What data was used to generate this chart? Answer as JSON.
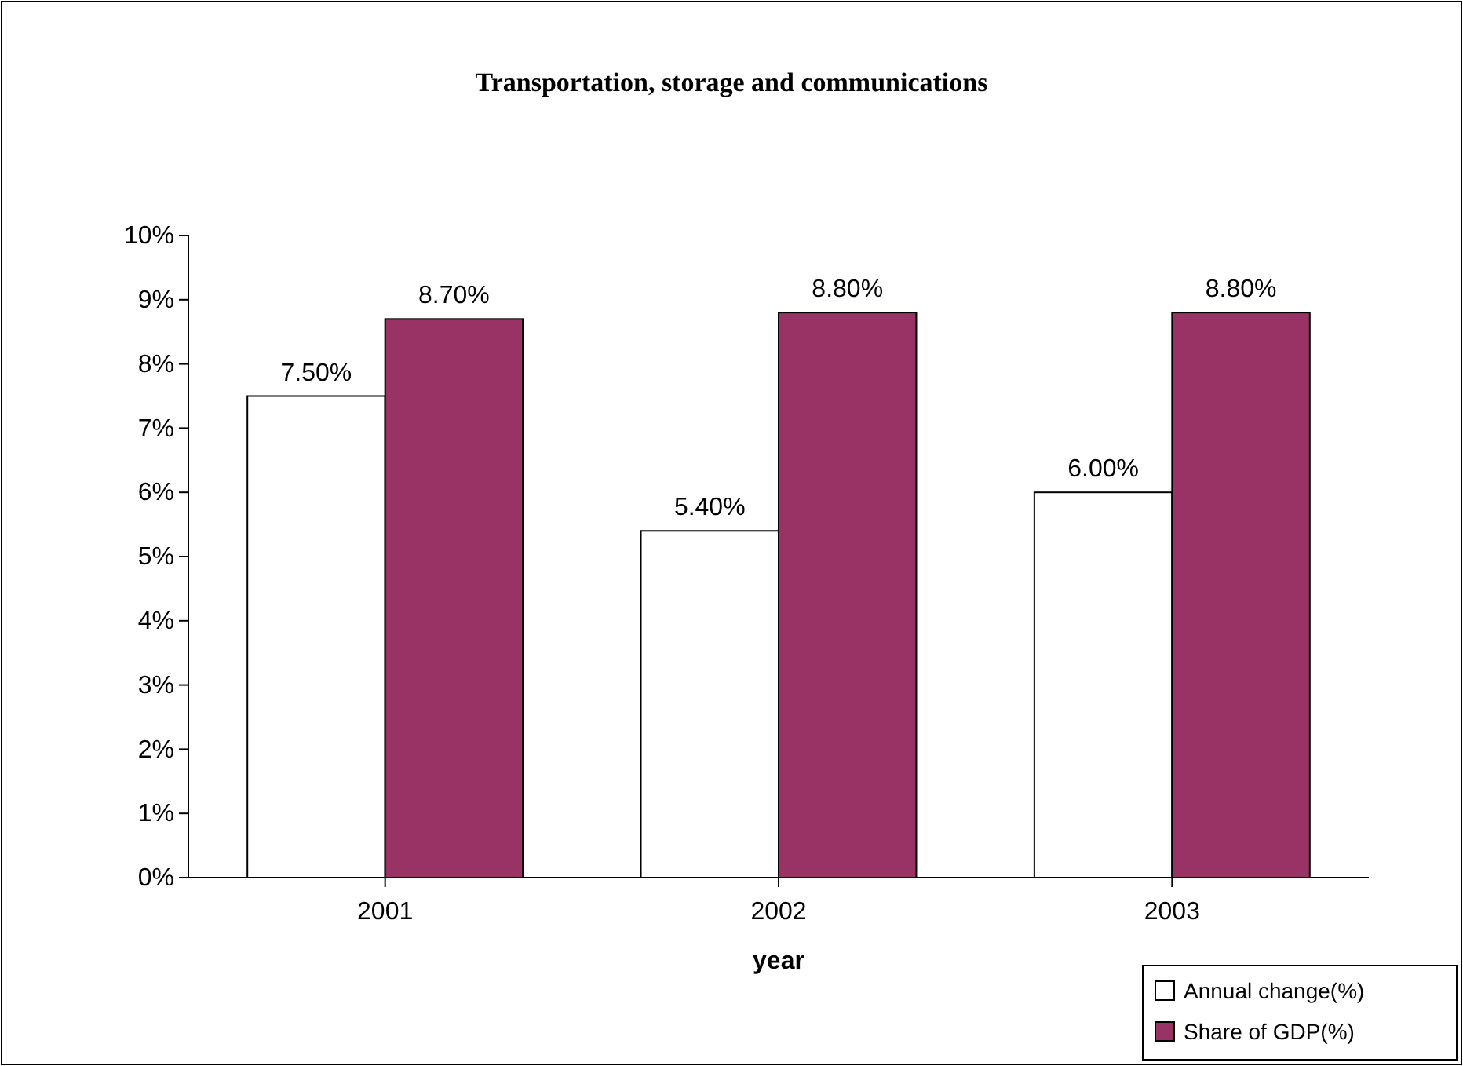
{
  "chart_data": {
    "type": "bar",
    "title": "Transportation, storage and communications",
    "xlabel": "year",
    "categories": [
      "2001",
      "2002",
      "2003"
    ],
    "series": [
      {
        "name": "Annual change(%)",
        "color": "#ffffff",
        "values": [
          7.5,
          5.4,
          6.0
        ],
        "value_labels": [
          "7.50%",
          "5.40%",
          "6.00%"
        ]
      },
      {
        "name": "Share of GDP(%)",
        "color": "#993366",
        "values": [
          8.7,
          8.8,
          8.8
        ],
        "value_labels": [
          "8.70%",
          "8.80%",
          "8.80%"
        ]
      }
    ],
    "ylim": [
      0,
      10
    ],
    "yticks": [
      {
        "value": 0,
        "label": "0%"
      },
      {
        "value": 1,
        "label": "1%"
      },
      {
        "value": 2,
        "label": "2%"
      },
      {
        "value": 3,
        "label": "3%"
      },
      {
        "value": 4,
        "label": "4%"
      },
      {
        "value": 5,
        "label": "5%"
      },
      {
        "value": 6,
        "label": "6%"
      },
      {
        "value": 7,
        "label": "7%"
      },
      {
        "value": 8,
        "label": "8%"
      },
      {
        "value": 9,
        "label": "9%"
      },
      {
        "value": 10,
        "label": "10%"
      }
    ],
    "legend": "bottom right"
  }
}
